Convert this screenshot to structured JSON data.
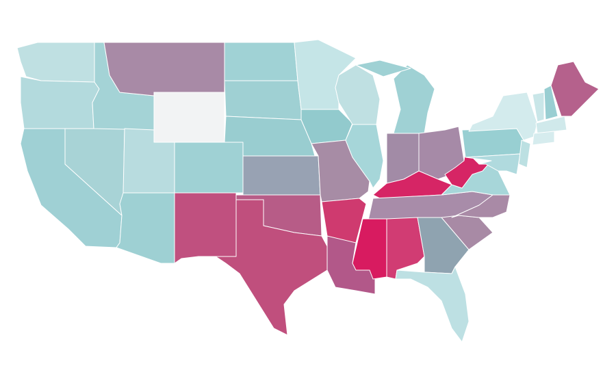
{
  "map": {
    "type": "choropleth",
    "regions": [
      {
        "color": "#bfe0e2"
      },
      {
        "color": "#b3dadd"
      },
      {
        "color": "#9fd0d4"
      },
      {
        "color": "#a8d3d6"
      },
      {
        "color": "#a4d3d6"
      },
      {
        "color": "#a88aa6"
      },
      {
        "color": "#f2f3f4"
      },
      {
        "color": "#b8dcdf"
      },
      {
        "color": "#9ed0d3"
      },
      {
        "color": "#9fd1d4"
      },
      {
        "color": "#c0507f"
      },
      {
        "color": "#a0d2d5"
      },
      {
        "color": "#9fd0d3"
      },
      {
        "color": "#99cdd0"
      },
      {
        "color": "#98a2b3"
      },
      {
        "color": "#b75c87"
      },
      {
        "color": "#c04f7d"
      },
      {
        "color": "#c5e5e7"
      },
      {
        "color": "#92cacd"
      },
      {
        "color": "#a78ca5"
      },
      {
        "color": "#cf3a6f"
      },
      {
        "color": "#b25889"
      },
      {
        "color": "#bfe0e2"
      },
      {
        "color": "#a6d6d9"
      },
      {
        "color": "#9fd1d4"
      },
      {
        "color": "#9fd1d4"
      },
      {
        "color": "#a28ba6"
      },
      {
        "color": "#a68aa7"
      },
      {
        "color": "#d62565"
      },
      {
        "color": "#a88ca9"
      },
      {
        "color": "#d81b60"
      },
      {
        "color": "#d13c73"
      },
      {
        "color": "#8fa3b0"
      },
      {
        "color": "#bde0e3"
      },
      {
        "color": "#a88aa5"
      },
      {
        "color": "#a98aa6"
      },
      {
        "color": "#a7d6d9"
      },
      {
        "color": "#d62565"
      },
      {
        "color": "#98cfd2"
      },
      {
        "color": "#d3ebed"
      },
      {
        "color": "#b0dade"
      },
      {
        "color": "#bce0e2"
      },
      {
        "color": "#c9e6e8"
      },
      {
        "color": "#99ced2"
      },
      {
        "color": "#b5618c"
      },
      {
        "color": "#d0e9eb"
      },
      {
        "color": "#d6ecee"
      }
    ]
  }
}
